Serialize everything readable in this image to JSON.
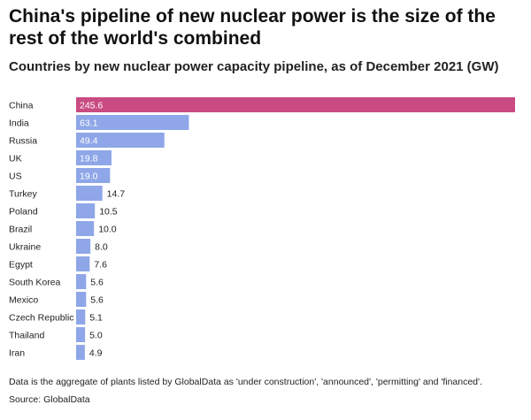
{
  "colors": {
    "highlight": "#c94b82",
    "bar": "#8fa7e8"
  },
  "chart_data": {
    "type": "bar",
    "orientation": "horizontal",
    "title": "China's pipeline of new nuclear power is the size of the rest of the world's combined",
    "subtitle": "Countries by new nuclear power capacity pipeline, as of December 2021 (GW)",
    "categories": [
      "China",
      "India",
      "Russia",
      "UK",
      "US",
      "Turkey",
      "Poland",
      "Brazil",
      "Ukraine",
      "Egypt",
      "South Korea",
      "Mexico",
      "Czech Republic",
      "Thailand",
      "Iran"
    ],
    "values": [
      245.6,
      63.1,
      49.4,
      19.8,
      19.0,
      14.7,
      10.5,
      10.0,
      8.0,
      7.6,
      5.6,
      5.6,
      5.1,
      5.0,
      4.9
    ],
    "value_labels": [
      "245.6",
      "63.1",
      "49.4",
      "19.8",
      "19.0",
      "14.7",
      "10.5",
      "10.0",
      "8.0",
      "7.6",
      "5.6",
      "5.6",
      "5.1",
      "5.0",
      "4.9"
    ],
    "xlim": [
      0,
      245.6
    ],
    "grid": false,
    "legend": "none",
    "highlight_category": "China"
  },
  "footer": {
    "note": "Data is the aggregate of plants listed by GlobalData as 'under construction', 'announced', 'permitting' and 'financed'.",
    "source": "Source: GlobalData"
  }
}
